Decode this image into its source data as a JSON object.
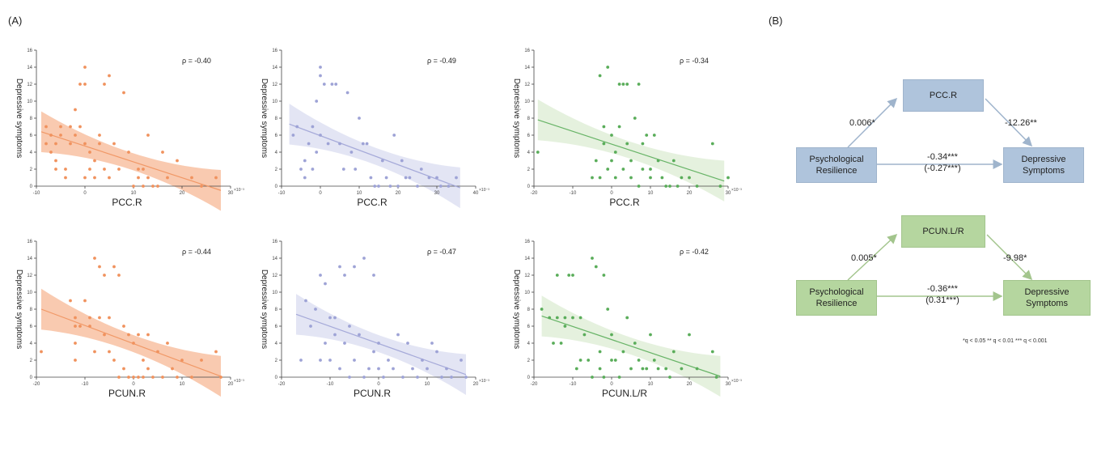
{
  "panels": {
    "a": "(A)",
    "b": "(B)"
  },
  "chart_data": [
    {
      "type": "scatter",
      "id": "pcc-1",
      "color": "#f0925e",
      "band": "#f7b896",
      "xlabel": "PCC.R",
      "ylabel": "Depressive symptoms",
      "rho_label": "ρ = -0.40",
      "exp_label": "×10⁻³",
      "xlim": [
        -10,
        30
      ],
      "ylim": [
        0,
        16
      ],
      "xticks": [
        -10,
        0,
        10,
        20,
        30
      ],
      "yticks": [
        0,
        2,
        4,
        6,
        8,
        10,
        12,
        14,
        16
      ],
      "fit": [
        [
          -9,
          6.4
        ],
        [
          28,
          -0.5
        ]
      ],
      "points": [
        [
          -8,
          5
        ],
        [
          -8,
          7
        ],
        [
          -7,
          6
        ],
        [
          -7,
          4
        ],
        [
          -6,
          5
        ],
        [
          -6,
          2
        ],
        [
          -6,
          3
        ],
        [
          -5,
          7
        ],
        [
          -5,
          6
        ],
        [
          -4,
          2
        ],
        [
          -4,
          1
        ],
        [
          -3,
          5
        ],
        [
          -3,
          7
        ],
        [
          -2,
          6
        ],
        [
          -2,
          9
        ],
        [
          -1,
          7
        ],
        [
          -1,
          12
        ],
        [
          0,
          14
        ],
        [
          0,
          12
        ],
        [
          0,
          5
        ],
        [
          0,
          1
        ],
        [
          1,
          4
        ],
        [
          1,
          2
        ],
        [
          2,
          1
        ],
        [
          2,
          3
        ],
        [
          3,
          6
        ],
        [
          3,
          5
        ],
        [
          4,
          2
        ],
        [
          4,
          12
        ],
        [
          5,
          13
        ],
        [
          5,
          1
        ],
        [
          6,
          5
        ],
        [
          7,
          2
        ],
        [
          8,
          11
        ],
        [
          9,
          4
        ],
        [
          10,
          0
        ],
        [
          11,
          1
        ],
        [
          11,
          2
        ],
        [
          12,
          2
        ],
        [
          12,
          0
        ],
        [
          13,
          6
        ],
        [
          13,
          1
        ],
        [
          14,
          0
        ],
        [
          15,
          0
        ],
        [
          16,
          4
        ],
        [
          17,
          1
        ],
        [
          19,
          3
        ],
        [
          22,
          1
        ],
        [
          24,
          0
        ],
        [
          27,
          1
        ]
      ]
    },
    {
      "type": "scatter",
      "id": "pcc-2",
      "color": "#9ea3d6",
      "band": "#d9dcf0",
      "xlabel": "PCC.R",
      "ylabel": "Depressive symptoms",
      "rho_label": "ρ = -0.49",
      "exp_label": "×10⁻³",
      "xlim": [
        -10,
        40
      ],
      "ylim": [
        0,
        16
      ],
      "xticks": [
        -10,
        0,
        10,
        20,
        30,
        40
      ],
      "yticks": [
        0,
        2,
        4,
        6,
        8,
        10,
        12,
        14,
        16
      ],
      "fit": [
        [
          -8,
          7.3
        ],
        [
          36,
          -0.2
        ]
      ],
      "points": [
        [
          -7,
          6
        ],
        [
          -6,
          7
        ],
        [
          -5,
          2
        ],
        [
          -4,
          1
        ],
        [
          -4,
          3
        ],
        [
          -3,
          5
        ],
        [
          -2,
          7
        ],
        [
          -2,
          2
        ],
        [
          -1,
          10
        ],
        [
          -1,
          4
        ],
        [
          0,
          14
        ],
        [
          0,
          13
        ],
        [
          0,
          6
        ],
        [
          1,
          12
        ],
        [
          2,
          5
        ],
        [
          3,
          12
        ],
        [
          4,
          12
        ],
        [
          5,
          5
        ],
        [
          6,
          2
        ],
        [
          7,
          11
        ],
        [
          8,
          4
        ],
        [
          9,
          2
        ],
        [
          10,
          8
        ],
        [
          11,
          5
        ],
        [
          12,
          5
        ],
        [
          13,
          1
        ],
        [
          14,
          0
        ],
        [
          15,
          0
        ],
        [
          16,
          3
        ],
        [
          17,
          1
        ],
        [
          18,
          0
        ],
        [
          19,
          6
        ],
        [
          20,
          0
        ],
        [
          21,
          3
        ],
        [
          22,
          1
        ],
        [
          23,
          1
        ],
        [
          25,
          0
        ],
        [
          26,
          2
        ],
        [
          28,
          1
        ],
        [
          30,
          1
        ],
        [
          31,
          0
        ],
        [
          33,
          0
        ],
        [
          35,
          1
        ]
      ]
    },
    {
      "type": "scatter",
      "id": "pcc-3",
      "color": "#5aad5a",
      "band": "#dcecd3",
      "xlabel": "PCC.R",
      "ylabel": "Depressive symptoms",
      "rho_label": "ρ = -0.34",
      "exp_label": "×10⁻³",
      "xlim": [
        -20,
        30
      ],
      "ylim": [
        0,
        16
      ],
      "xticks": [
        -20,
        -10,
        0,
        10,
        20,
        30
      ],
      "yticks": [
        0,
        2,
        4,
        6,
        8,
        10,
        12,
        14,
        16
      ],
      "fit": [
        [
          -19,
          7.8
        ],
        [
          29,
          0.6
        ]
      ],
      "points": [
        [
          -19,
          4
        ],
        [
          -5,
          1
        ],
        [
          -4,
          3
        ],
        [
          -3,
          1
        ],
        [
          -3,
          13
        ],
        [
          -2,
          5
        ],
        [
          -2,
          7
        ],
        [
          -1,
          14
        ],
        [
          -1,
          2
        ],
        [
          0,
          3
        ],
        [
          0,
          6
        ],
        [
          1,
          1
        ],
        [
          1,
          4
        ],
        [
          2,
          7
        ],
        [
          2,
          12
        ],
        [
          3,
          12
        ],
        [
          3,
          2
        ],
        [
          4,
          12
        ],
        [
          4,
          5
        ],
        [
          5,
          1
        ],
        [
          5,
          3
        ],
        [
          6,
          8
        ],
        [
          7,
          12
        ],
        [
          7,
          0
        ],
        [
          8,
          2
        ],
        [
          8,
          5
        ],
        [
          9,
          6
        ],
        [
          10,
          2
        ],
        [
          10,
          1
        ],
        [
          11,
          6
        ],
        [
          12,
          3
        ],
        [
          13,
          1
        ],
        [
          14,
          0
        ],
        [
          15,
          0
        ],
        [
          16,
          3
        ],
        [
          17,
          0
        ],
        [
          18,
          1
        ],
        [
          20,
          1
        ],
        [
          22,
          0
        ],
        [
          26,
          5
        ],
        [
          28,
          0
        ],
        [
          30,
          1
        ]
      ]
    },
    {
      "type": "scatter",
      "id": "pcun-1",
      "color": "#f0925e",
      "band": "#f7b896",
      "xlabel": "PCUN.R",
      "ylabel": "Depressive symptoms",
      "rho_label": "ρ = -0.44",
      "exp_label": "×10⁻³",
      "xlim": [
        -20,
        20
      ],
      "ylim": [
        0,
        16
      ],
      "xticks": [
        -20,
        -10,
        0,
        10,
        20
      ],
      "yticks": [
        0,
        2,
        4,
        6,
        8,
        10,
        12,
        14,
        16
      ],
      "fit": [
        [
          -19,
          8
        ],
        [
          18,
          0.1
        ]
      ],
      "points": [
        [
          -19,
          3
        ],
        [
          -13,
          9
        ],
        [
          -12,
          7
        ],
        [
          -12,
          6
        ],
        [
          -12,
          4
        ],
        [
          -12,
          2
        ],
        [
          -11,
          6
        ],
        [
          -10,
          9
        ],
        [
          -9,
          6
        ],
        [
          -9,
          7
        ],
        [
          -8,
          14
        ],
        [
          -8,
          3
        ],
        [
          -7,
          13
        ],
        [
          -7,
          7
        ],
        [
          -6,
          12
        ],
        [
          -6,
          5
        ],
        [
          -5,
          7
        ],
        [
          -5,
          3
        ],
        [
          -4,
          13
        ],
        [
          -4,
          2
        ],
        [
          -3,
          12
        ],
        [
          -3,
          0
        ],
        [
          -2,
          6
        ],
        [
          -2,
          1
        ],
        [
          -1,
          5
        ],
        [
          -1,
          0
        ],
        [
          0,
          4
        ],
        [
          0,
          0
        ],
        [
          1,
          5
        ],
        [
          1,
          0
        ],
        [
          2,
          2
        ],
        [
          2,
          0
        ],
        [
          3,
          1
        ],
        [
          3,
          5
        ],
        [
          4,
          0
        ],
        [
          5,
          3
        ],
        [
          6,
          0
        ],
        [
          7,
          4
        ],
        [
          8,
          1
        ],
        [
          9,
          0
        ],
        [
          10,
          2
        ],
        [
          12,
          0
        ],
        [
          14,
          2
        ],
        [
          17,
          3
        ],
        [
          18,
          0
        ]
      ]
    },
    {
      "type": "scatter",
      "id": "pcun-2",
      "color": "#9ea3d6",
      "band": "#d9dcf0",
      "xlabel": "PCUN.R",
      "ylabel": "Depressive symptoms",
      "rho_label": "ρ = -0.47",
      "exp_label": "×10⁻³",
      "xlim": [
        -20,
        20
      ],
      "ylim": [
        0,
        16
      ],
      "xticks": [
        -20,
        -10,
        0,
        10,
        20
      ],
      "yticks": [
        0,
        2,
        4,
        6,
        8,
        10,
        12,
        14,
        16
      ],
      "fit": [
        [
          -17,
          7.4
        ],
        [
          18,
          0.3
        ]
      ],
      "points": [
        [
          -16,
          2
        ],
        [
          -15,
          9
        ],
        [
          -14,
          6
        ],
        [
          -13,
          8
        ],
        [
          -12,
          12
        ],
        [
          -12,
          2
        ],
        [
          -11,
          11
        ],
        [
          -11,
          4
        ],
        [
          -10,
          7
        ],
        [
          -10,
          2
        ],
        [
          -9,
          7
        ],
        [
          -9,
          5
        ],
        [
          -8,
          13
        ],
        [
          -8,
          1
        ],
        [
          -7,
          12
        ],
        [
          -7,
          4
        ],
        [
          -6,
          6
        ],
        [
          -6,
          0
        ],
        [
          -5,
          13
        ],
        [
          -5,
          2
        ],
        [
          -4,
          5
        ],
        [
          -3,
          14
        ],
        [
          -3,
          0
        ],
        [
          -2,
          1
        ],
        [
          -1,
          12
        ],
        [
          -1,
          3
        ],
        [
          0,
          4
        ],
        [
          0,
          1
        ],
        [
          1,
          0
        ],
        [
          2,
          2
        ],
        [
          3,
          1
        ],
        [
          4,
          5
        ],
        [
          5,
          0
        ],
        [
          6,
          4
        ],
        [
          7,
          1
        ],
        [
          8,
          0
        ],
        [
          9,
          2
        ],
        [
          10,
          1
        ],
        [
          11,
          4
        ],
        [
          12,
          3
        ],
        [
          13,
          0
        ],
        [
          14,
          1
        ],
        [
          15,
          0
        ],
        [
          17,
          2
        ],
        [
          18,
          0
        ]
      ]
    },
    {
      "type": "scatter",
      "id": "pcun-3",
      "color": "#5aad5a",
      "band": "#dcecd3",
      "xlabel": "PCUN.L/R",
      "ylabel": "Depressive symptoms",
      "rho_label": "ρ = -0.42",
      "exp_label": "×10⁻³",
      "xlim": [
        -20,
        30
      ],
      "ylim": [
        0,
        16
      ],
      "xticks": [
        -20,
        -10,
        0,
        10,
        20,
        30
      ],
      "yticks": [
        0,
        2,
        4,
        6,
        8,
        10,
        12,
        14,
        16
      ],
      "fit": [
        [
          -18,
          7.2
        ],
        [
          28,
          0.1
        ]
      ],
      "points": [
        [
          -18,
          8
        ],
        [
          -16,
          7
        ],
        [
          -15,
          4
        ],
        [
          -14,
          12
        ],
        [
          -14,
          7
        ],
        [
          -13,
          4
        ],
        [
          -12,
          7
        ],
        [
          -12,
          6
        ],
        [
          -11,
          12
        ],
        [
          -10,
          12
        ],
        [
          -10,
          7
        ],
        [
          -9,
          1
        ],
        [
          -8,
          2
        ],
        [
          -8,
          7
        ],
        [
          -7,
          5
        ],
        [
          -6,
          2
        ],
        [
          -5,
          14
        ],
        [
          -5,
          0
        ],
        [
          -4,
          13
        ],
        [
          -3,
          1
        ],
        [
          -3,
          3
        ],
        [
          -2,
          12
        ],
        [
          -2,
          0
        ],
        [
          -1,
          8
        ],
        [
          0,
          2
        ],
        [
          0,
          5
        ],
        [
          1,
          2
        ],
        [
          2,
          0
        ],
        [
          3,
          3
        ],
        [
          4,
          7
        ],
        [
          5,
          1
        ],
        [
          6,
          4
        ],
        [
          7,
          2
        ],
        [
          8,
          1
        ],
        [
          9,
          1
        ],
        [
          10,
          5
        ],
        [
          11,
          2
        ],
        [
          12,
          1
        ],
        [
          14,
          1
        ],
        [
          15,
          0
        ],
        [
          16,
          3
        ],
        [
          18,
          1
        ],
        [
          20,
          5
        ],
        [
          22,
          1
        ],
        [
          26,
          3
        ],
        [
          27,
          0
        ]
      ]
    }
  ],
  "mediation": {
    "top": {
      "mediator": "PCC.R",
      "x_line1": "Psychological",
      "x_line2": "Resilience",
      "y_line1": "Depressive",
      "y_line2": "Symptoms",
      "a": "0.006*",
      "b": "-12.26**",
      "c1": "-0.34***",
      "c2": "(-0.27***)"
    },
    "bottom": {
      "mediator": "PCUN.L/R",
      "x_line1": "Psychological",
      "x_line2": "Resilience",
      "y_line1": "Depressive",
      "y_line2": "Symptoms",
      "a": "0.005*",
      "b": "-9.98*",
      "c1": "-0.36***",
      "c2": "(0.31***)"
    },
    "note": "*q < 0.05 ** q < 0.01 *** q < 0.001",
    "colors": {
      "blue": "#afc4dc",
      "green": "#b5d69f",
      "arrow_blue": "#9fb4cc",
      "arrow_green": "#a3c58d"
    }
  }
}
